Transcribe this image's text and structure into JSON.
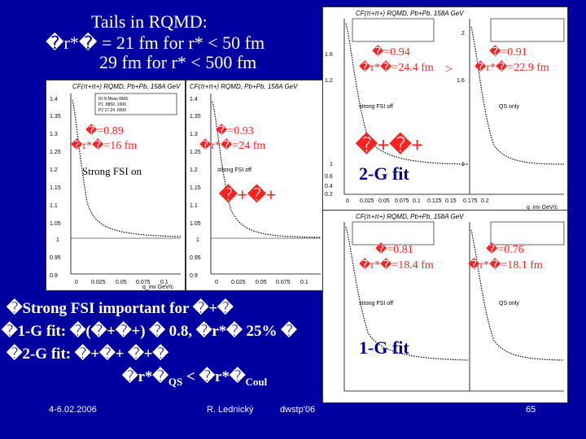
{
  "header": {
    "line1": "Tails in RQMD:",
    "line2": "�r*� = 21 fm  for r* < 50 fm",
    "line3": "29 fm  for r* < 500 fm"
  },
  "left_plots": {
    "title": "CF(π+π+) RQMD, Pb+Pb, 158A GeV",
    "xlabel": "q_inv GeV/c",
    "y_ticks": [
      "1.4",
      "1.35",
      "1.3",
      "1.25",
      "1.2",
      "1.15",
      "1.1",
      "1.05",
      "1",
      "0.95",
      "0.9"
    ],
    "x_ticks": [
      "0",
      "0.025",
      "0.05",
      "0.075",
      "0.1"
    ],
    "plot_a": {
      "lambda": "�=0.89",
      "r": "�r*�=16 fm",
      "label": "Strong FSI on"
    },
    "plot_b": {
      "lambda": "�=0.93",
      "r": "�r*�=24 fm",
      "note": "strong FSI off"
    },
    "pair_label": "�+�+"
  },
  "top_right": {
    "title": "CF(π+π+) RQMD, Pb+Pb, 158A GeV",
    "left_y_ticks": [
      "1.6",
      "1.2",
      "1",
      "0.6",
      "0.4",
      "0.2"
    ],
    "right_y_ticks": [
      "2",
      "1.6",
      "1"
    ],
    "x_ticks": [
      "0",
      "0.025",
      "0.05",
      "0.075",
      "0.1",
      "0.125",
      "0.15",
      "0.175",
      "0.2"
    ],
    "xlabel": "q_inv GeV/c",
    "fit_a": {
      "lambda": "�=0.94",
      "r": "�r*�=24.4 fm",
      "note": "strong FSI off"
    },
    "fit_b": {
      "lambda": "�=0.91",
      "r": "�r*�=22.9 fm",
      "note": "QS only"
    },
    "gt": ">",
    "pair_label": "�+�+",
    "fit_label": "2-G fit"
  },
  "bottom_right": {
    "title": "CF(π+π+) RQMD, Pb+Pb, 158A GeV",
    "fit_a": {
      "lambda": "�=0.81",
      "r": "�r*�=18.4 fm",
      "note": "strong FSI off"
    },
    "fit_b": {
      "lambda": "�=0.76",
      "r": "�r*�=18.1 fm",
      "note": "QS only"
    },
    "fit_label": "1-G fit"
  },
  "bullets": {
    "b1": "�Strong FSI important for �+�",
    "b2": "�1-G fit: �(�+�+) � 0.8,  �r*� 25% �",
    "b3": "�2-G fit: �+�+  �+�",
    "b4_a": "�r*�",
    "b4_sub1": "QS",
    "b4_b": " < �r*�",
    "b4_sub2": "Coul"
  },
  "footer": {
    "date": "4-6.02.2006",
    "author": "R. Lednický",
    "event": "dwstp'06",
    "page": "65"
  }
}
